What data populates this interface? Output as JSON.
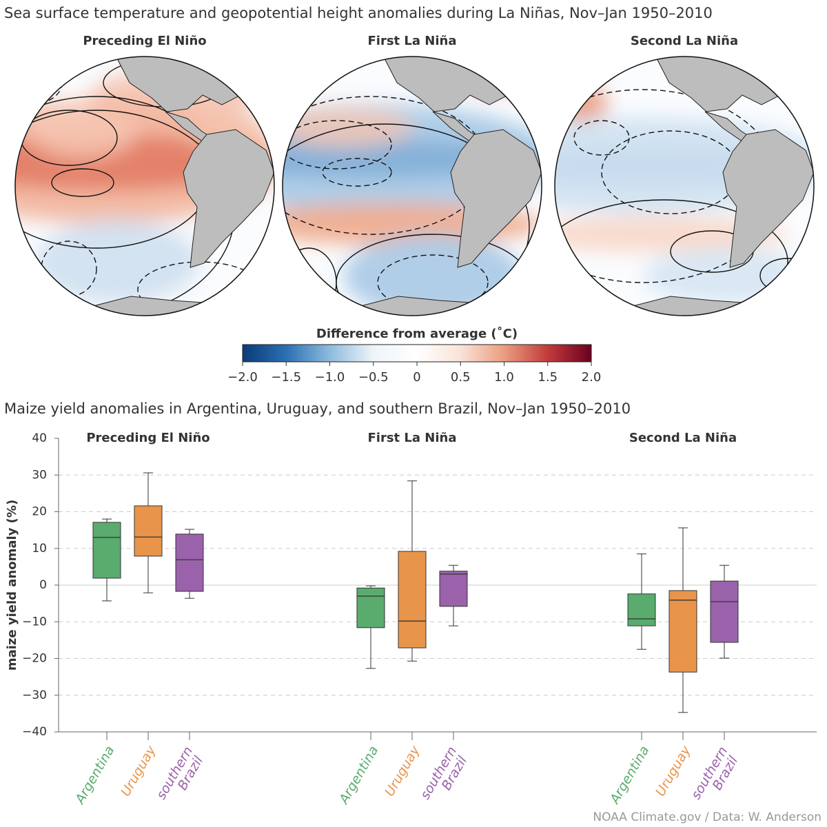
{
  "title": "Sea surface temperature and geopotential height anomalies during La Niñas, Nov–Jan 1950–2010",
  "maps": [
    {
      "title": "Preceding El Niño"
    },
    {
      "title": "First La Niña"
    },
    {
      "title": "Second La Niña"
    }
  ],
  "colorbar": {
    "label": "Difference from average (˚C)",
    "lim": [
      -2,
      2
    ],
    "colors": [
      "#0b3a78",
      "#2c6fb3",
      "#8dbbdd",
      "#eef4f9",
      "#ffffff",
      "#f9e3d8",
      "#eb9d80",
      "#c23b3b",
      "#6b0020"
    ],
    "ticks": [
      {
        "value": -2,
        "label": "−2.0"
      },
      {
        "value": -1.5,
        "label": "−1.5"
      },
      {
        "value": -1,
        "label": "−1.0"
      },
      {
        "value": -0.5,
        "label": "−0.5"
      },
      0,
      0.5,
      {
        "value": 1,
        "label": "1.0"
      },
      1.5,
      {
        "value": 2,
        "label": "2.0"
      }
    ]
  },
  "chart_data": {
    "type": "box",
    "title": "Maize yield anomalies in Argentina, Uruguay, and southern Brazil, Nov–Jan 1950–2010",
    "ylabel": "maize yield anomaly (%)",
    "categories": [
      "Preceding El Niño",
      "First La Niña",
      "Second La Niña"
    ],
    "ylim": [
      -40,
      40
    ],
    "yticks": [
      40,
      30,
      20,
      10,
      0,
      {
        "value": -10,
        "label": "−10"
      },
      {
        "value": -20,
        "label": "−20"
      },
      {
        "value": -30,
        "label": "−30"
      },
      {
        "value": -40,
        "label": "−40"
      }
    ],
    "grid": true,
    "series": [
      {
        "name": "Argentina",
        "color": "#5aab6e",
        "whisker_low": [
          -4.3,
          -22.7,
          -17.5
        ],
        "q1": [
          1.9,
          -11.6,
          -11.1
        ],
        "median": [
          13.0,
          -3.0,
          -9.2
        ],
        "q3": [
          17.1,
          -0.8,
          -2.4
        ],
        "whisker_high": [
          18.0,
          -0.2,
          8.5
        ]
      },
      {
        "name": "Uruguay",
        "color": "#e8954b",
        "whisker_low": [
          -2.1,
          -20.7,
          -34.7
        ],
        "q1": [
          7.9,
          -17.1,
          -23.7
        ],
        "median": [
          13.1,
          -9.8,
          -4.1
        ],
        "q3": [
          21.6,
          9.2,
          -1.5
        ],
        "whisker_high": [
          30.6,
          28.4,
          15.6
        ]
      },
      {
        "name": "southern Brazil",
        "color": "#9a62ab",
        "whisker_low": [
          -3.6,
          -11.1,
          -19.9
        ],
        "q1": [
          -1.7,
          -5.8,
          -15.6
        ],
        "median": [
          6.9,
          3.0,
          -4.5
        ],
        "q3": [
          13.9,
          3.8,
          1.1
        ],
        "whisker_high": [
          15.2,
          5.4,
          5.4
        ]
      }
    ]
  },
  "source": "NOAA Climate.gov / Data: W. Anderson"
}
